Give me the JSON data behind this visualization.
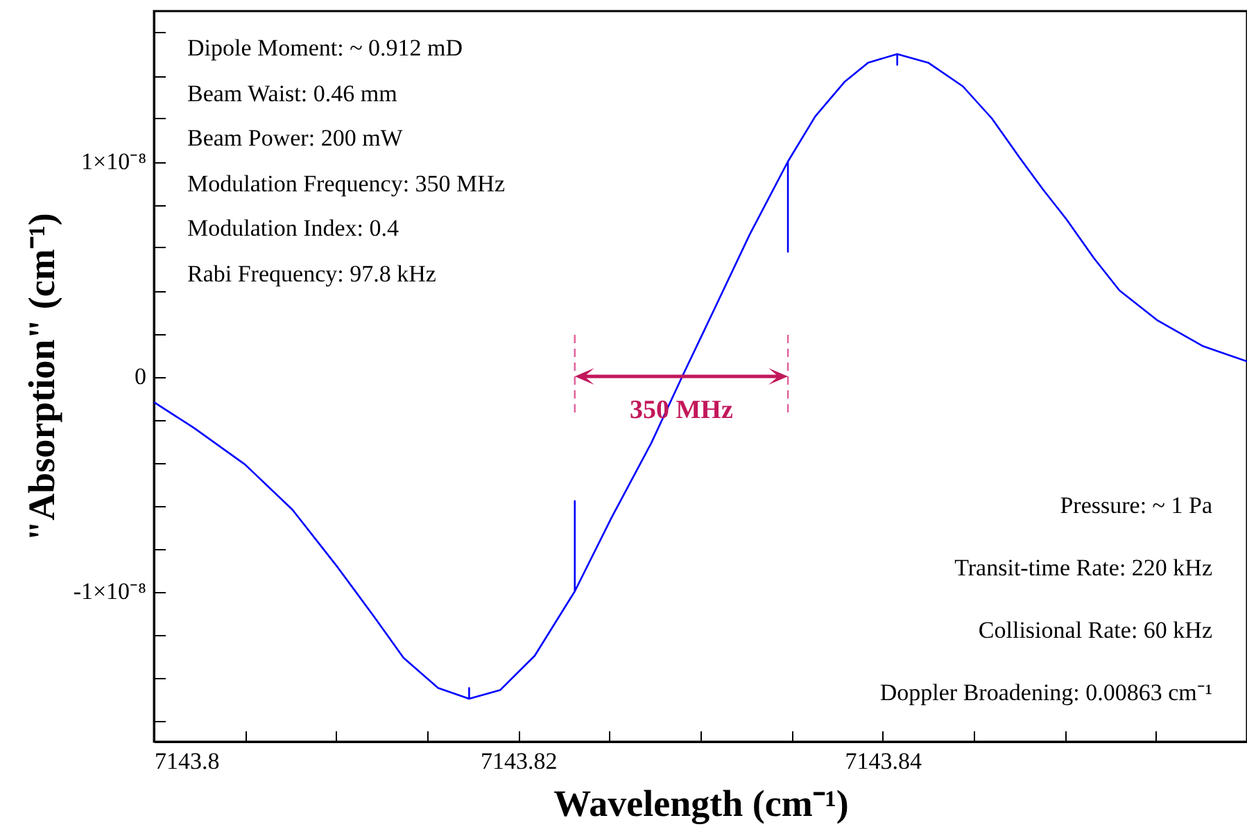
{
  "chart_data": {
    "type": "line",
    "xlabel": "Wavelength (cm⁻¹)",
    "ylabel": "\"Absorption\" (cm⁻¹)",
    "x": [
      7143.8,
      7143.8022,
      7143.805,
      7143.8076,
      7143.8101,
      7143.8121,
      7143.8137,
      7143.8156,
      7143.8173,
      7143.8173,
      7143.8173,
      7143.819,
      7143.8209,
      7143.8231,
      7143.8231,
      7143.8231,
      7143.8251,
      7143.8273,
      7143.829,
      7143.8308,
      7143.8327,
      7143.8348,
      7143.8348,
      7143.8348,
      7143.8363,
      7143.8379,
      7143.8392,
      7143.8408,
      7143.8408,
      7143.8408,
      7143.8425,
      7143.8444,
      7143.846,
      7143.8475,
      7143.8488,
      7143.8501,
      7143.8516,
      7143.853,
      7143.8551,
      7143.8576,
      7143.86
    ],
    "series": [
      {
        "color": "#0000ff",
        "values": [
          -1.2e-09,
          -2.4e-09,
          -4.1e-09,
          -6.2e-09,
          -8.9e-09,
          -1.12e-08,
          -1.31e-08,
          -1.45e-08,
          -1.5e-08,
          -1.45e-08,
          -1.5e-08,
          -1.46e-08,
          -1.3e-08,
          -1e-08,
          -5.8e-09,
          -1e-08,
          -6.6e-09,
          -3.1e-09,
          0,
          3.2e-09,
          6.6e-09,
          1e-08,
          5.8e-09,
          1e-08,
          1.21e-08,
          1.37e-08,
          1.46e-08,
          1.5e-08,
          1.45e-08,
          1.5e-08,
          1.46e-08,
          1.35e-08,
          1.2e-08,
          1.02e-08,
          8.7e-09,
          7.3e-09,
          5.5e-09,
          4e-09,
          2.6e-09,
          1.4e-09,
          7e-10
        ]
      }
    ],
    "xlim": [
      7143.8,
      7143.86
    ],
    "ylim": [
      -1.7e-08,
      1.7e-08
    ],
    "xticks": [
      7143.8,
      {
        "value": 7143.805,
        "label": null
      },
      {
        "value": 7143.81,
        "label": null
      },
      {
        "value": 7143.815,
        "label": null
      },
      7143.82,
      {
        "value": 7143.825,
        "label": null
      },
      {
        "value": 7143.83,
        "label": null
      },
      {
        "value": 7143.835,
        "label": null
      },
      7143.84,
      {
        "value": 7143.845,
        "label": null
      },
      {
        "value": 7143.85,
        "label": null
      },
      {
        "value": 7143.855,
        "label": null
      }
    ],
    "yticks": [
      {
        "value": -1.6e-08,
        "label": null
      },
      {
        "value": -1.4e-08,
        "label": null
      },
      {
        "value": -1.2e-08,
        "label": null
      },
      {
        "value": -1e-08,
        "label": "-1×10⁻⁸"
      },
      {
        "value": -8e-09,
        "label": null
      },
      {
        "value": -6e-09,
        "label": null
      },
      {
        "value": -4e-09,
        "label": null
      },
      {
        "value": -2e-09,
        "label": null
      },
      0,
      {
        "value": 2e-09,
        "label": null
      },
      {
        "value": 4e-09,
        "label": null
      },
      {
        "value": 6e-09,
        "label": null
      },
      {
        "value": 8e-09,
        "label": null
      },
      {
        "value": 1e-08,
        "label": "1×10⁻⁸"
      },
      {
        "value": 1.2e-08,
        "label": null
      },
      {
        "value": 1.4e-08,
        "label": null
      },
      {
        "value": 1.6e-08,
        "label": null
      }
    ],
    "ref_lines": [
      {
        "axis": "x",
        "value": 7143.8231,
        "color": "#e0609a",
        "line_style": "dashed"
      },
      {
        "axis": "x",
        "value": 7143.8348,
        "color": "#e0609a",
        "line_style": "dashed"
      }
    ],
    "annotations": [
      "350 MHz",
      "Dipole Moment: ~ 0.912 mD",
      "Beam Waist: 0.46 mm",
      "Beam Power: 200 mW",
      "Modulation Frequency: 350 MHz",
      "Modulation Index: 0.4",
      "Rabi Frequency: 97.8 kHz",
      "Pressure: ~ 1 Pa",
      "Transit-time Rate: 220 kHz",
      "Collisional Rate: 60 kHz",
      "Doppler Broadening: 0.00863 cm⁻¹"
    ],
    "grid": false,
    "marker": "none",
    "line_style": "solid"
  }
}
